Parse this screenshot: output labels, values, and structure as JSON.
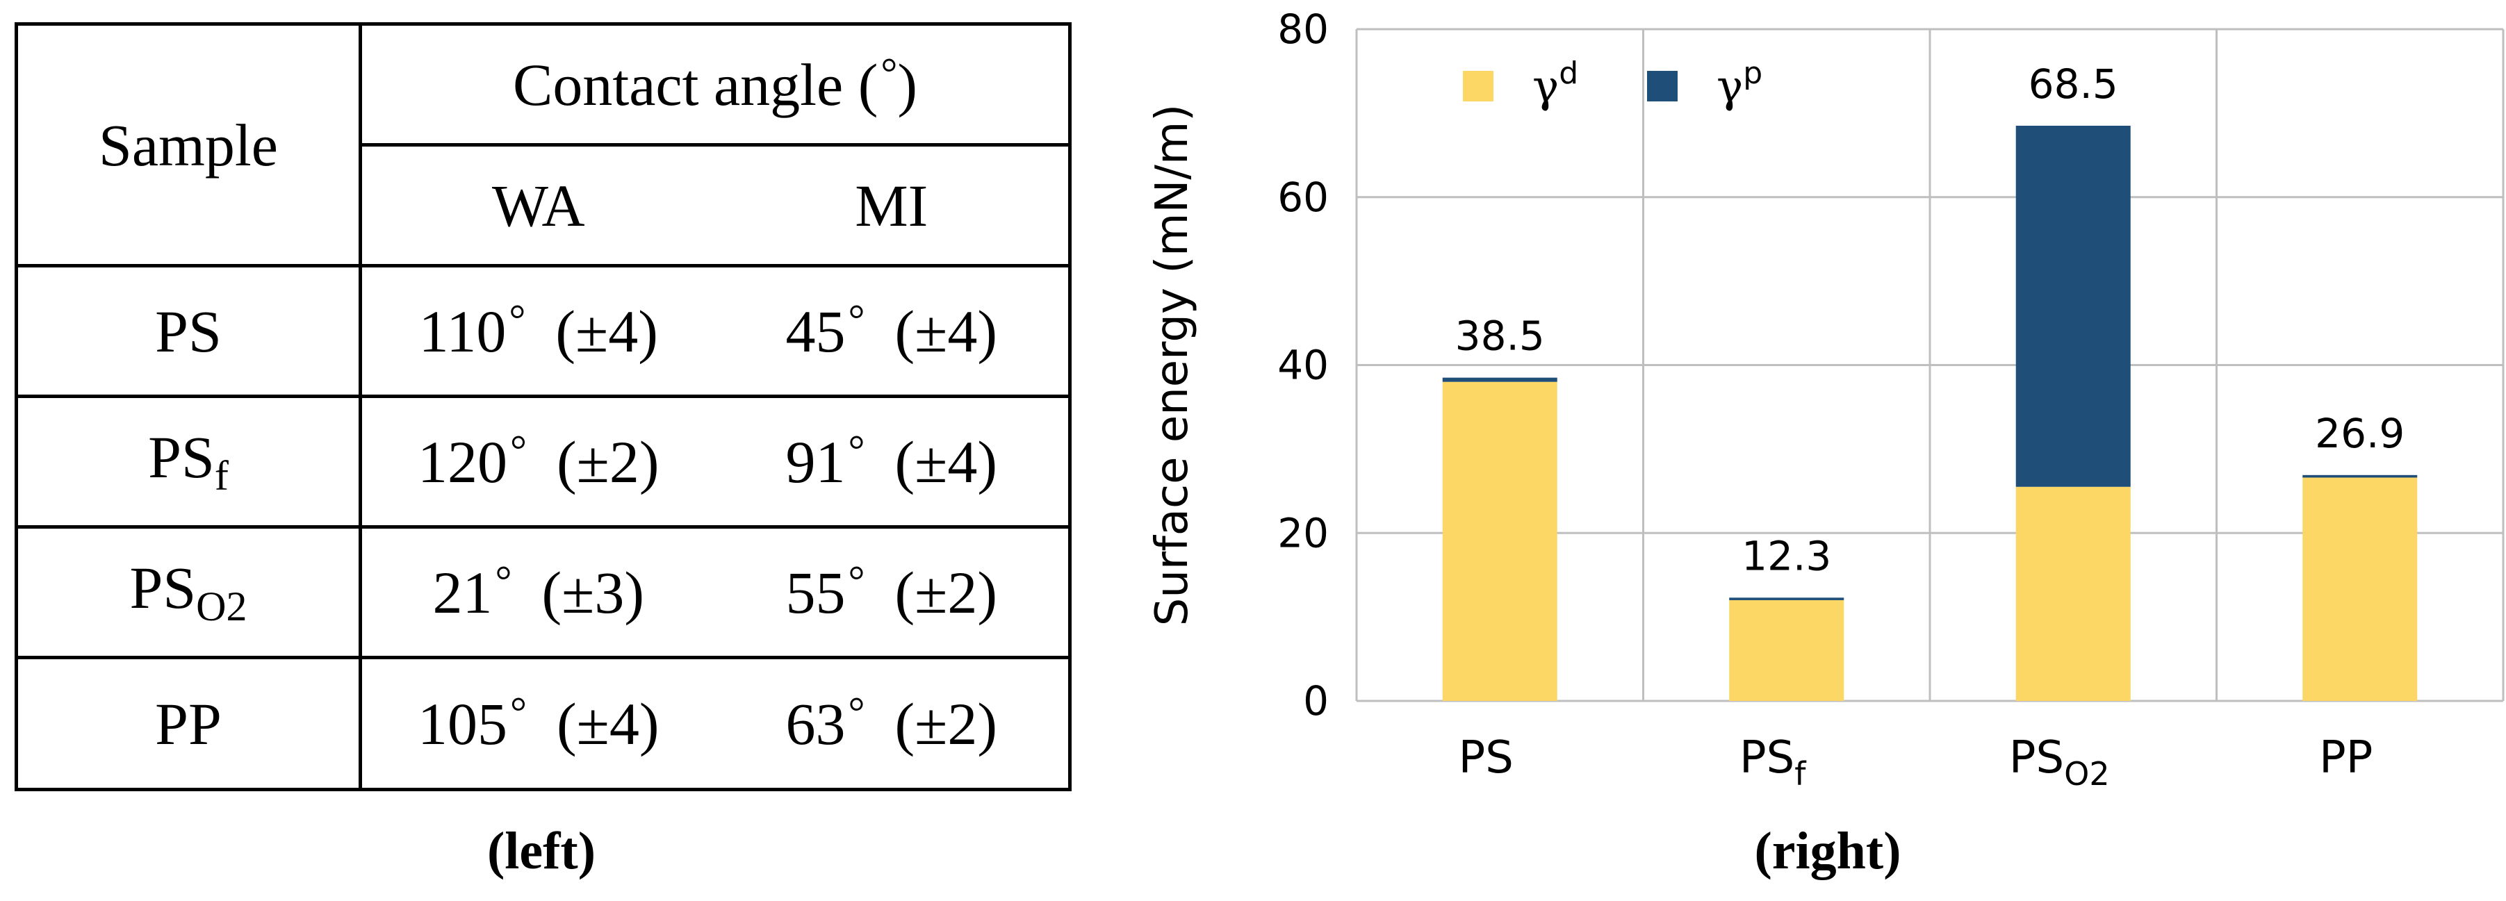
{
  "table": {
    "header": {
      "sample": "Sample",
      "contact_angle": "Contact angle (",
      "contact_angle_close": ")",
      "wa": "WA",
      "mi": "MI"
    },
    "rows": [
      {
        "sample": "PS",
        "sample_sub": "",
        "wa_angle": "110",
        "wa_err": "(±4)",
        "mi_angle": "45",
        "mi_err": "(±4)"
      },
      {
        "sample": "PS",
        "sample_sub": "f",
        "wa_angle": "120",
        "wa_err": "(±2)",
        "mi_angle": "91",
        "mi_err": "(±4)"
      },
      {
        "sample": "PS",
        "sample_sub": "O2",
        "wa_angle": "21",
        "wa_err": "(±3)",
        "mi_angle": "55",
        "mi_err": "(±2)"
      },
      {
        "sample": "PP",
        "sample_sub": "",
        "wa_angle": "105",
        "wa_err": "(±4)",
        "mi_angle": "63",
        "mi_err": "(±2)"
      }
    ],
    "degree_symbol": "°"
  },
  "captions": {
    "left": "(left)",
    "right": "(right)"
  },
  "chart_data": {
    "type": "bar",
    "stacked": true,
    "categories": [
      {
        "base": "PS",
        "sub": ""
      },
      {
        "base": "PS",
        "sub": "f"
      },
      {
        "base": "PS",
        "sub": "O2"
      },
      {
        "base": "PP",
        "sub": ""
      }
    ],
    "series": [
      {
        "name": "γ",
        "name_sup": "d",
        "color": "#FCD766",
        "values": [
          38.0,
          12.0,
          25.5,
          26.6
        ]
      },
      {
        "name": "γ",
        "name_sup": "p",
        "color": "#1F4E79",
        "values": [
          0.5,
          0.3,
          43.0,
          0.3
        ]
      }
    ],
    "totals": [
      "38.5",
      "12.3",
      "68.5",
      "26.9"
    ],
    "ylabel": "Surface energy (mN/m)",
    "xlabel": "",
    "ylim": [
      0,
      80
    ],
    "yticks": [
      "0",
      "20",
      "40",
      "60",
      "80"
    ],
    "grid": true,
    "legend_position": "top-left"
  }
}
